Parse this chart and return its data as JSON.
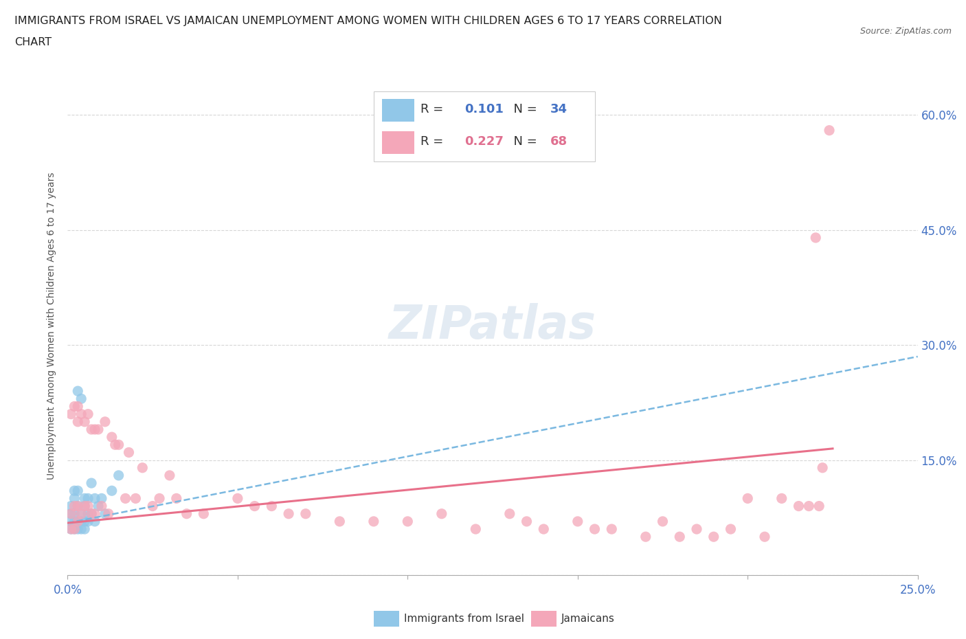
{
  "title_line1": "IMMIGRANTS FROM ISRAEL VS JAMAICAN UNEMPLOYMENT AMONG WOMEN WITH CHILDREN AGES 6 TO 17 YEARS CORRELATION",
  "title_line2": "CHART",
  "source": "Source: ZipAtlas.com",
  "ylabel": "Unemployment Among Women with Children Ages 6 to 17 years",
  "xlim": [
    0.0,
    0.25
  ],
  "ylim": [
    0.0,
    0.65
  ],
  "legend1_R": "0.101",
  "legend1_N": "34",
  "legend2_R": "0.227",
  "legend2_N": "68",
  "color_israel": "#91C7E8",
  "color_jamaican": "#F4A7B9",
  "color_text_blue": "#4472C4",
  "color_text_pink": "#E07090",
  "color_line_israel": "#7AB8E0",
  "color_line_jamaican": "#E8708A",
  "background_color": "#FFFFFF",
  "israel_x": [
    0.001,
    0.001,
    0.001,
    0.001,
    0.002,
    0.002,
    0.002,
    0.002,
    0.002,
    0.003,
    0.003,
    0.003,
    0.003,
    0.003,
    0.004,
    0.004,
    0.004,
    0.004,
    0.005,
    0.005,
    0.005,
    0.005,
    0.006,
    0.006,
    0.006,
    0.007,
    0.007,
    0.008,
    0.008,
    0.009,
    0.01,
    0.011,
    0.013,
    0.015
  ],
  "israel_y": [
    0.06,
    0.07,
    0.08,
    0.09,
    0.06,
    0.07,
    0.08,
    0.1,
    0.11,
    0.06,
    0.07,
    0.09,
    0.11,
    0.24,
    0.06,
    0.07,
    0.08,
    0.23,
    0.06,
    0.07,
    0.09,
    0.1,
    0.07,
    0.08,
    0.1,
    0.08,
    0.12,
    0.07,
    0.1,
    0.09,
    0.1,
    0.08,
    0.11,
    0.13
  ],
  "jamaican_x": [
    0.001,
    0.001,
    0.001,
    0.002,
    0.002,
    0.002,
    0.003,
    0.003,
    0.003,
    0.003,
    0.004,
    0.004,
    0.005,
    0.005,
    0.006,
    0.006,
    0.007,
    0.007,
    0.008,
    0.008,
    0.009,
    0.01,
    0.011,
    0.012,
    0.013,
    0.014,
    0.015,
    0.017,
    0.018,
    0.02,
    0.022,
    0.025,
    0.027,
    0.03,
    0.032,
    0.035,
    0.04,
    0.05,
    0.055,
    0.06,
    0.065,
    0.07,
    0.08,
    0.09,
    0.1,
    0.11,
    0.12,
    0.13,
    0.135,
    0.14,
    0.15,
    0.155,
    0.16,
    0.17,
    0.175,
    0.18,
    0.185,
    0.19,
    0.195,
    0.2,
    0.205,
    0.21,
    0.215,
    0.218,
    0.22,
    0.221,
    0.222,
    0.224
  ],
  "jamaican_y": [
    0.06,
    0.08,
    0.21,
    0.06,
    0.09,
    0.22,
    0.07,
    0.09,
    0.2,
    0.22,
    0.08,
    0.21,
    0.09,
    0.2,
    0.09,
    0.21,
    0.08,
    0.19,
    0.08,
    0.19,
    0.19,
    0.09,
    0.2,
    0.08,
    0.18,
    0.17,
    0.17,
    0.1,
    0.16,
    0.1,
    0.14,
    0.09,
    0.1,
    0.13,
    0.1,
    0.08,
    0.08,
    0.1,
    0.09,
    0.09,
    0.08,
    0.08,
    0.07,
    0.07,
    0.07,
    0.08,
    0.06,
    0.08,
    0.07,
    0.06,
    0.07,
    0.06,
    0.06,
    0.05,
    0.07,
    0.05,
    0.06,
    0.05,
    0.06,
    0.1,
    0.05,
    0.1,
    0.09,
    0.09,
    0.44,
    0.09,
    0.14,
    0.58
  ],
  "israel_trend_x": [
    0.0,
    0.25
  ],
  "israel_trend_y": [
    0.068,
    0.285
  ],
  "jamaican_trend_x": [
    0.0,
    0.225
  ],
  "jamaican_trend_y": [
    0.068,
    0.165
  ]
}
